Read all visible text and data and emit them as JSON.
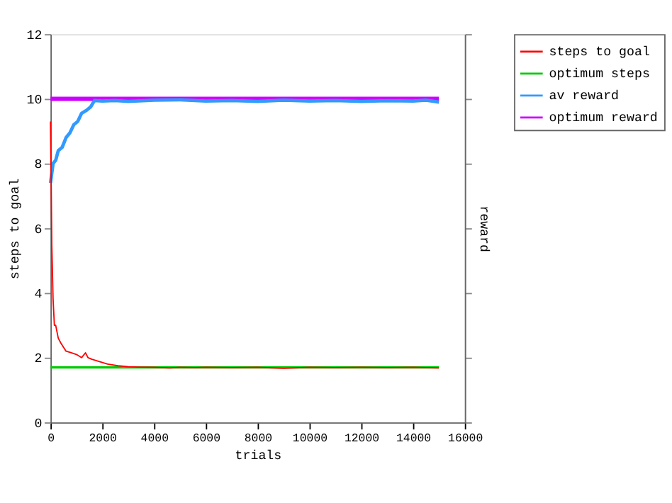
{
  "chart_data": {
    "type": "line",
    "xlabel": "trials",
    "ylabel": "steps to goal",
    "y2label": "reward",
    "xlim": [
      0,
      16000
    ],
    "xticks": [
      0,
      2000,
      4000,
      6000,
      8000,
      10000,
      12000,
      14000,
      16000
    ],
    "ylim": [
      0,
      12
    ],
    "yticks": [
      0,
      2,
      4,
      6,
      8,
      10,
      12
    ],
    "grid": false,
    "legend": "right",
    "marker": "none",
    "line_style": "solid",
    "series": [
      {
        "name": "steps to goal",
        "color": "#ff0000",
        "x": [
          0,
          50,
          100,
          150,
          200,
          300,
          400,
          600,
          800,
          1000,
          1200,
          1350,
          1450,
          1600,
          1800,
          2000,
          2200,
          2600,
          3000,
          3400,
          4000,
          4600,
          5000,
          5600,
          6000,
          7000,
          8000,
          9000,
          10000,
          11000,
          12000,
          13000,
          14000,
          15000
        ],
        "values": [
          9.3,
          5.5,
          3.8,
          3.0,
          3.0,
          2.6,
          2.45,
          2.2,
          2.15,
          2.1,
          2.0,
          2.15,
          2.0,
          1.95,
          1.9,
          1.85,
          1.8,
          1.75,
          1.72,
          1.71,
          1.7,
          1.68,
          1.7,
          1.69,
          1.7,
          1.69,
          1.7,
          1.67,
          1.7,
          1.69,
          1.7,
          1.69,
          1.7,
          1.68
        ]
      },
      {
        "name": "optimum steps",
        "color": "#00cc00",
        "x": [
          0,
          15000
        ],
        "values": [
          1.7,
          1.7
        ]
      },
      {
        "name": "av reward",
        "color": "#3399ff",
        "x": [
          0,
          50,
          100,
          200,
          300,
          450,
          600,
          750,
          900,
          1050,
          1200,
          1400,
          1550,
          1700,
          2000,
          2500,
          3000,
          4000,
          5000,
          6000,
          7000,
          8000,
          9000,
          10000,
          11000,
          12000,
          13000,
          14000,
          14500,
          15000
        ],
        "values": [
          7.4,
          7.7,
          8.0,
          8.1,
          8.4,
          8.5,
          8.8,
          8.95,
          9.2,
          9.3,
          9.55,
          9.65,
          9.75,
          9.95,
          9.93,
          9.95,
          9.92,
          9.96,
          9.97,
          9.93,
          9.95,
          9.92,
          9.96,
          9.93,
          9.95,
          9.92,
          9.94,
          9.93,
          9.96,
          9.9
        ]
      },
      {
        "name": "optimum reward",
        "color": "#cc00ff",
        "x": [
          0,
          15000
        ],
        "values": [
          10,
          10
        ]
      }
    ]
  }
}
